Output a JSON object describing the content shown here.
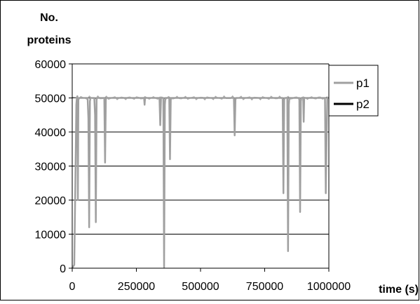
{
  "chart_data": {
    "type": "line",
    "ylabel_line1": "No.",
    "ylabel_line2": "proteins",
    "xlabel": "time (s)",
    "xlim": [
      0,
      1000000
    ],
    "ylim": [
      0,
      60000
    ],
    "x_ticks": [
      0,
      250000,
      500000,
      750000,
      1000000
    ],
    "y_ticks": [
      0,
      10000,
      20000,
      30000,
      40000,
      50000,
      60000
    ],
    "grid": "horizontal",
    "legend_position": "right",
    "colors": {
      "p1": "#a0a0a0",
      "p2": "#000000",
      "grid": "#000000",
      "plot_bg": "#ffffff"
    },
    "series": [
      {
        "name": "p1",
        "baseline": 50000,
        "points": [
          [
            0,
            0
          ],
          [
            8000,
            1000
          ],
          [
            14000,
            35000
          ],
          [
            16000,
            48000
          ],
          [
            18000,
            50000
          ],
          [
            20000,
            50500
          ],
          [
            22000,
            20000
          ],
          [
            24000,
            49500
          ],
          [
            26000,
            50000
          ],
          [
            60000,
            50000
          ],
          [
            63000,
            44000
          ],
          [
            66000,
            12000
          ],
          [
            69000,
            49000
          ],
          [
            71000,
            50000
          ],
          [
            86000,
            50000
          ],
          [
            89000,
            45000
          ],
          [
            92000,
            13500
          ],
          [
            95000,
            49500
          ],
          [
            97000,
            50000
          ],
          [
            125000,
            50000
          ],
          [
            128000,
            31000
          ],
          [
            131000,
            49500
          ],
          [
            133000,
            50000
          ],
          [
            280000,
            50000
          ],
          [
            282000,
            48000
          ],
          [
            284000,
            50000
          ],
          [
            340000,
            50000
          ],
          [
            343000,
            42000
          ],
          [
            346000,
            50000
          ],
          [
            355000,
            50000
          ],
          [
            358000,
            300
          ],
          [
            361000,
            48000
          ],
          [
            363000,
            50000
          ],
          [
            378000,
            50000
          ],
          [
            381000,
            32000
          ],
          [
            384000,
            49500
          ],
          [
            386000,
            50000
          ],
          [
            630000,
            50000
          ],
          [
            633000,
            39000
          ],
          [
            636000,
            49500
          ],
          [
            638000,
            50000
          ],
          [
            820000,
            50000
          ],
          [
            823000,
            22000
          ],
          [
            826000,
            49500
          ],
          [
            828000,
            50000
          ],
          [
            838000,
            50000
          ],
          [
            841000,
            5000
          ],
          [
            844000,
            48000
          ],
          [
            846000,
            50000
          ],
          [
            885000,
            50000
          ],
          [
            888000,
            16500
          ],
          [
            891000,
            49000
          ],
          [
            893000,
            50000
          ],
          [
            900000,
            50000
          ],
          [
            902000,
            43000
          ],
          [
            904000,
            50000
          ],
          [
            985000,
            50000
          ],
          [
            988000,
            22000
          ],
          [
            991000,
            37000
          ],
          [
            994000,
            50000
          ],
          [
            1000000,
            50000
          ]
        ]
      },
      {
        "name": "p2",
        "points": []
      }
    ]
  }
}
